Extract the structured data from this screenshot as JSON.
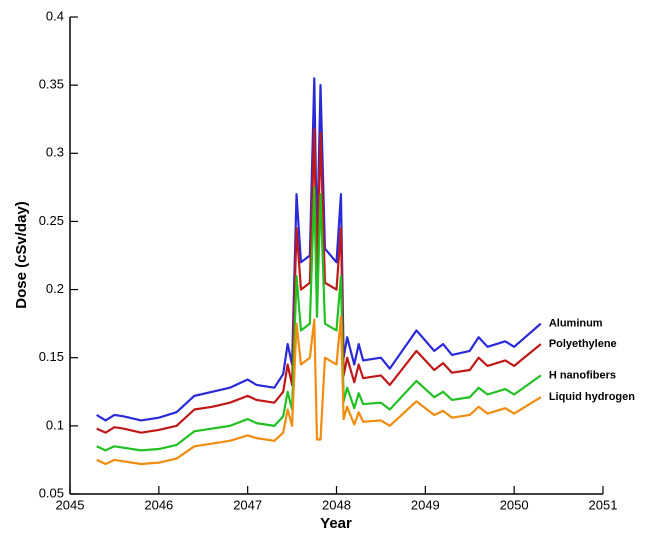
{
  "chart_data": {
    "type": "line",
    "x_label": "Year",
    "y_label": "Dose (cSv/day)",
    "x": [
      2045.3,
      2045.4,
      2045.5,
      2045.6,
      2045.8,
      2046.0,
      2046.2,
      2046.4,
      2046.6,
      2046.8,
      2047.0,
      2047.1,
      2047.3,
      2047.4,
      2047.45,
      2047.5,
      2047.55,
      2047.6,
      2047.7,
      2047.75,
      2047.78,
      2047.82,
      2047.87,
      2048.0,
      2048.05,
      2048.08,
      2048.12,
      2048.2,
      2048.25,
      2048.3,
      2048.5,
      2048.6,
      2048.9,
      2049.1,
      2049.2,
      2049.3,
      2049.5,
      2049.6,
      2049.7,
      2049.9,
      2050.0,
      2050.3
    ],
    "series": [
      {
        "name": "Aluminum",
        "color": "#2a2ad8",
        "values": [
          0.108,
          0.104,
          0.108,
          0.107,
          0.104,
          0.106,
          0.11,
          0.122,
          0.125,
          0.128,
          0.134,
          0.13,
          0.128,
          0.138,
          0.16,
          0.145,
          0.27,
          0.22,
          0.225,
          0.355,
          0.23,
          0.35,
          0.23,
          0.22,
          0.27,
          0.15,
          0.165,
          0.145,
          0.16,
          0.148,
          0.15,
          0.142,
          0.17,
          0.155,
          0.16,
          0.152,
          0.155,
          0.165,
          0.158,
          0.162,
          0.158,
          0.175
        ]
      },
      {
        "name": "Polyethylene",
        "color": "#c01818",
        "values": [
          0.098,
          0.095,
          0.099,
          0.098,
          0.095,
          0.097,
          0.1,
          0.112,
          0.114,
          0.117,
          0.122,
          0.119,
          0.117,
          0.125,
          0.145,
          0.13,
          0.245,
          0.2,
          0.205,
          0.318,
          0.205,
          0.315,
          0.205,
          0.2,
          0.245,
          0.137,
          0.15,
          0.132,
          0.145,
          0.135,
          0.137,
          0.13,
          0.155,
          0.141,
          0.146,
          0.139,
          0.141,
          0.15,
          0.144,
          0.148,
          0.144,
          0.16
        ]
      },
      {
        "name": "H nanofibers",
        "color": "#22c022",
        "values": [
          0.085,
          0.082,
          0.085,
          0.084,
          0.082,
          0.083,
          0.086,
          0.096,
          0.098,
          0.1,
          0.105,
          0.102,
          0.1,
          0.107,
          0.125,
          0.112,
          0.21,
          0.17,
          0.175,
          0.275,
          0.18,
          0.27,
          0.175,
          0.17,
          0.21,
          0.118,
          0.128,
          0.113,
          0.124,
          0.116,
          0.117,
          0.112,
          0.133,
          0.121,
          0.125,
          0.119,
          0.121,
          0.128,
          0.123,
          0.127,
          0.123,
          0.137
        ]
      },
      {
        "name": "Liquid hydrogen",
        "color": "#f08c10",
        "values": [
          0.075,
          0.072,
          0.075,
          0.074,
          0.072,
          0.073,
          0.076,
          0.085,
          0.087,
          0.089,
          0.093,
          0.091,
          0.089,
          0.095,
          0.112,
          0.1,
          0.175,
          0.145,
          0.15,
          0.178,
          0.09,
          0.09,
          0.15,
          0.145,
          0.18,
          0.105,
          0.114,
          0.101,
          0.11,
          0.103,
          0.104,
          0.1,
          0.118,
          0.108,
          0.111,
          0.106,
          0.108,
          0.114,
          0.109,
          0.113,
          0.109,
          0.121
        ]
      }
    ],
    "xlim": [
      2045,
      2051
    ],
    "xticks": [
      2045,
      2046,
      2047,
      2048,
      2049,
      2050,
      2051
    ],
    "ylim": [
      0.05,
      0.4
    ],
    "yticks": [
      0.05,
      0.1,
      0.15,
      0.2,
      0.25,
      0.3,
      0.35,
      0.4
    ],
    "grid": false,
    "legend": "inline-right"
  }
}
